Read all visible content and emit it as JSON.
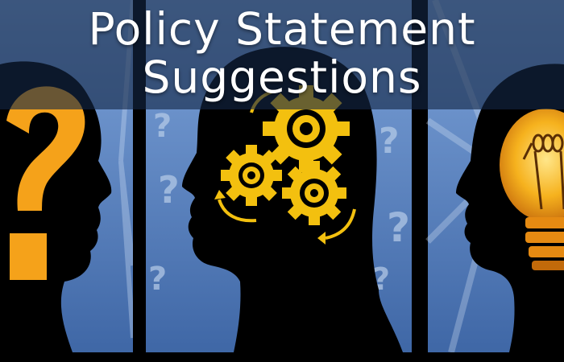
{
  "banner": {
    "title_line1": "Policy Statement",
    "title_line2": "Suggestions"
  },
  "panels": [
    {
      "icon": "question-mark-icon"
    },
    {
      "icon": "gears-icon"
    },
    {
      "icon": "lightbulb-icon"
    }
  ],
  "colors": {
    "accent_orange": "#f5a21a",
    "gear_yellow": "#f3c00f",
    "panel_blue": "#5b85c2",
    "banner_overlay": "#142646"
  }
}
